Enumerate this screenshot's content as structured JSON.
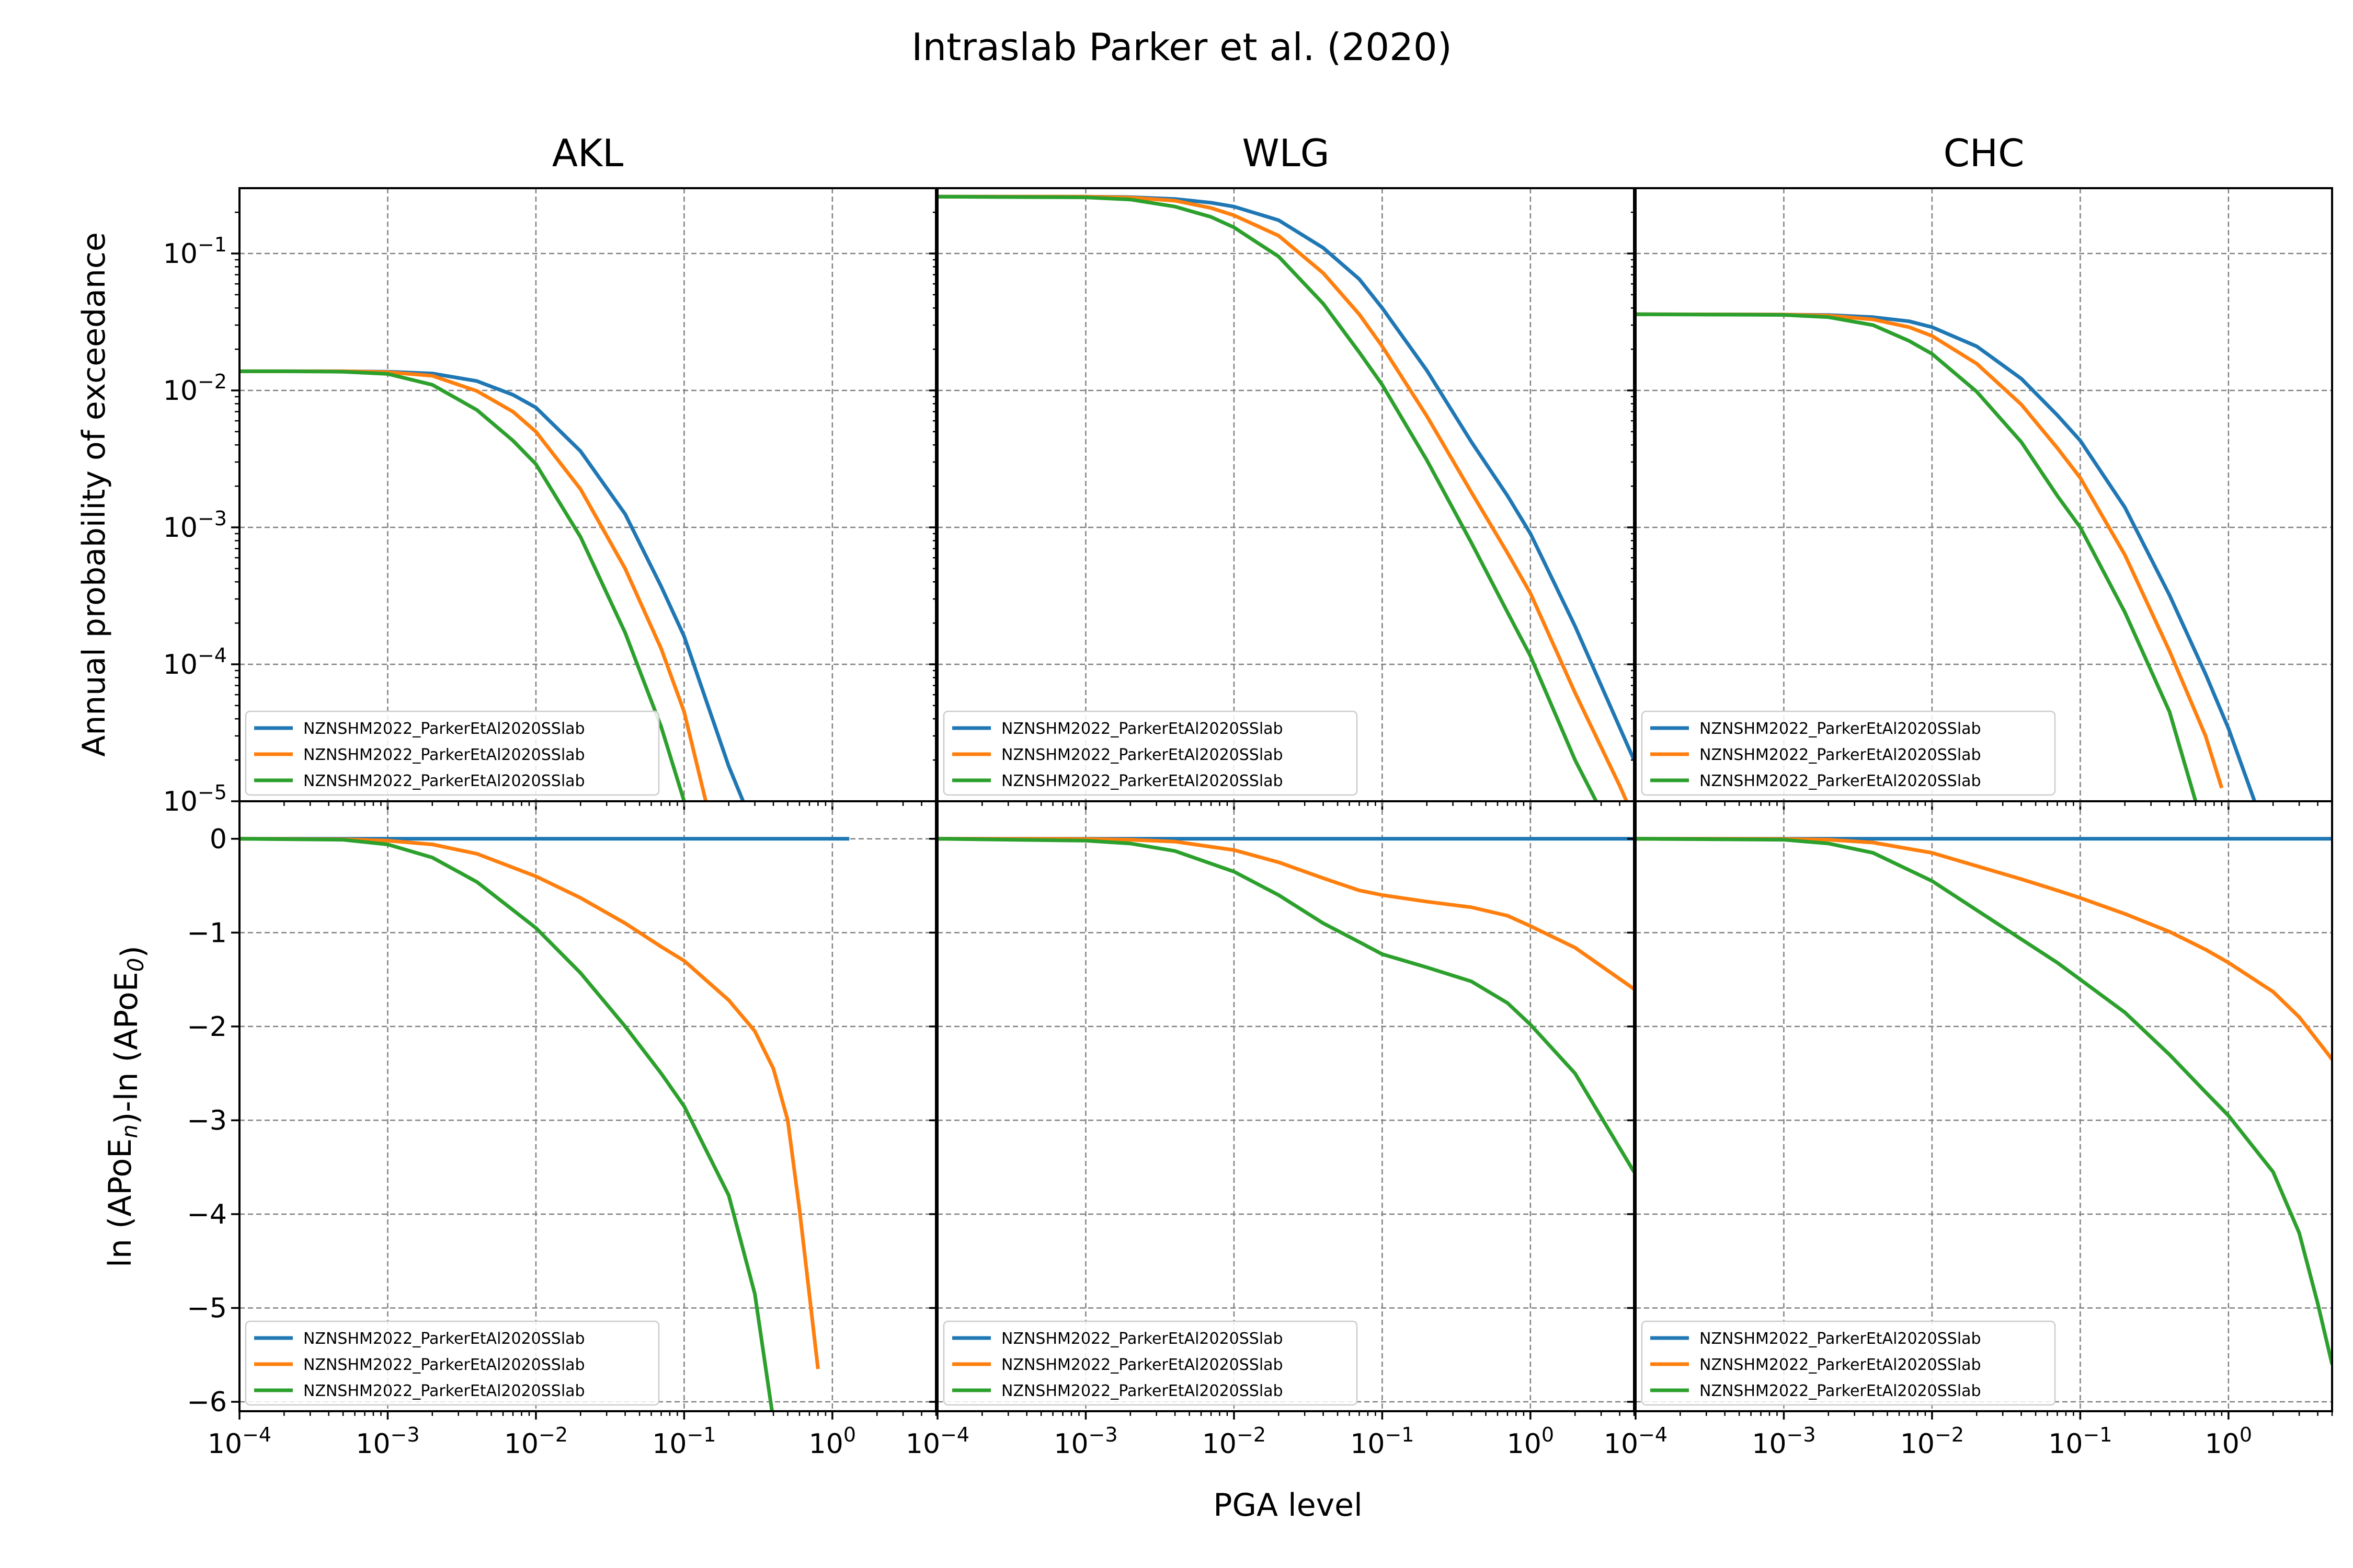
{
  "figure": {
    "title": "Intraslab Parker et al. (2020)",
    "xlabel": "PGA level",
    "ylabel_top": "Annual probability of exceedance",
    "ylabel_bottom": "ln (APoE_n)-ln (APoE_0)"
  },
  "colors": {
    "series": [
      "#1f77b4",
      "#ff7f0e",
      "#2ca02c"
    ],
    "grid": "#808080"
  },
  "chart_data": [
    {
      "type": "line",
      "panel": "top-left",
      "title": "AKL",
      "ylabel": "Annual probability of exceedance",
      "x_scale": "log",
      "y_scale": "log",
      "xlim": [
        0.0001,
        5.0
      ],
      "ylim": [
        1e-05,
        0.3
      ],
      "legend": "lower-left",
      "grid": true,
      "series": [
        {
          "name": "NZNSHM2022_ParkerEtAl2020SSlab",
          "x": [
            0.0001,
            0.0002,
            0.0005,
            0.001,
            0.002,
            0.004,
            0.007,
            0.01,
            0.02,
            0.04,
            0.07,
            0.1,
            0.2,
            0.25
          ],
          "y": [
            0.0138,
            0.0138,
            0.0138,
            0.0137,
            0.0133,
            0.0117,
            0.0093,
            0.0075,
            0.0036,
            0.00125,
            0.00037,
            0.00016,
            1.8e-05,
            1e-05
          ]
        },
        {
          "name": "NZNSHM2022_ParkerEtAl2020SSlab",
          "x": [
            0.0001,
            0.0002,
            0.0005,
            0.001,
            0.002,
            0.004,
            0.007,
            0.01,
            0.02,
            0.04,
            0.07,
            0.1,
            0.14
          ],
          "y": [
            0.0138,
            0.0138,
            0.0138,
            0.0136,
            0.0128,
            0.0099,
            0.007,
            0.005,
            0.0019,
            0.0005,
            0.00013,
            4.5e-05,
            1e-05
          ]
        },
        {
          "name": "NZNSHM2022_ParkerEtAl2020SSlab",
          "x": [
            0.0001,
            0.0002,
            0.0005,
            0.001,
            0.002,
            0.004,
            0.007,
            0.01,
            0.02,
            0.04,
            0.07,
            0.1
          ],
          "y": [
            0.0138,
            0.0138,
            0.0137,
            0.0132,
            0.011,
            0.0072,
            0.0043,
            0.0029,
            0.00085,
            0.00017,
            3.5e-05,
            1e-05
          ]
        }
      ]
    },
    {
      "type": "line",
      "panel": "top-center",
      "title": "WLG",
      "x_scale": "log",
      "y_scale": "log",
      "xlim": [
        0.0001,
        5.0
      ],
      "ylim": [
        1e-05,
        0.3
      ],
      "legend": "lower-left",
      "grid": true,
      "series": [
        {
          "name": "NZNSHM2022_ParkerEtAl2020SSlab",
          "x": [
            0.0001,
            0.001,
            0.002,
            0.004,
            0.007,
            0.01,
            0.02,
            0.04,
            0.07,
            0.1,
            0.2,
            0.4,
            0.7,
            1.0,
            2.0,
            5.0
          ],
          "y": [
            0.26,
            0.26,
            0.258,
            0.25,
            0.235,
            0.22,
            0.175,
            0.11,
            0.065,
            0.04,
            0.014,
            0.0042,
            0.0017,
            0.0009,
            0.00019,
            2e-05
          ]
        },
        {
          "name": "NZNSHM2022_ParkerEtAl2020SSlab",
          "x": [
            0.0001,
            0.001,
            0.002,
            0.004,
            0.007,
            0.01,
            0.02,
            0.04,
            0.07,
            0.1,
            0.2,
            0.4,
            0.7,
            1.0,
            2.0,
            4.0,
            5.0
          ],
          "y": [
            0.26,
            0.26,
            0.256,
            0.243,
            0.215,
            0.19,
            0.135,
            0.072,
            0.036,
            0.021,
            0.0065,
            0.0018,
            0.00065,
            0.00033,
            6.2e-05,
            1.3e-05,
            7.5e-06
          ]
        },
        {
          "name": "NZNSHM2022_ParkerEtAl2020SSlab",
          "x": [
            0.0001,
            0.001,
            0.002,
            0.004,
            0.007,
            0.01,
            0.02,
            0.04,
            0.07,
            0.1,
            0.2,
            0.4,
            0.7,
            1.0,
            2.0,
            3.0
          ],
          "y": [
            0.26,
            0.257,
            0.248,
            0.22,
            0.185,
            0.155,
            0.095,
            0.043,
            0.019,
            0.011,
            0.0031,
            0.00077,
            0.00024,
            0.000115,
            2e-05,
            8.5e-06
          ]
        }
      ]
    },
    {
      "type": "line",
      "panel": "top-right",
      "title": "CHC",
      "x_scale": "log",
      "y_scale": "log",
      "xlim": [
        0.0001,
        5.0
      ],
      "ylim": [
        1e-05,
        0.3
      ],
      "legend": "lower-left",
      "grid": true,
      "series": [
        {
          "name": "NZNSHM2022_ParkerEtAl2020SSlab",
          "x": [
            0.0001,
            0.001,
            0.002,
            0.004,
            0.007,
            0.01,
            0.02,
            0.04,
            0.07,
            0.1,
            0.2,
            0.4,
            0.7,
            1.0,
            1.5
          ],
          "y": [
            0.036,
            0.0358,
            0.0355,
            0.0343,
            0.032,
            0.029,
            0.021,
            0.0122,
            0.0066,
            0.0043,
            0.0014,
            0.00032,
            8.5e-05,
            3.4e-05,
            1e-05
          ]
        },
        {
          "name": "NZNSHM2022_ParkerEtAl2020SSlab",
          "x": [
            0.0001,
            0.001,
            0.002,
            0.004,
            0.007,
            0.01,
            0.02,
            0.04,
            0.07,
            0.1,
            0.2,
            0.4,
            0.7,
            0.9
          ],
          "y": [
            0.036,
            0.0358,
            0.0352,
            0.033,
            0.029,
            0.025,
            0.0157,
            0.0079,
            0.0038,
            0.0023,
            0.00063,
            0.000125,
            3e-05,
            1.25e-05
          ]
        },
        {
          "name": "NZNSHM2022_ParkerEtAl2020SSlab",
          "x": [
            0.0001,
            0.001,
            0.002,
            0.004,
            0.007,
            0.01,
            0.02,
            0.04,
            0.07,
            0.1,
            0.2,
            0.4,
            0.6
          ],
          "y": [
            0.036,
            0.0356,
            0.0343,
            0.03,
            0.023,
            0.0185,
            0.0098,
            0.0042,
            0.0017,
            0.001,
            0.00024,
            4.5e-05,
            1e-05
          ]
        }
      ]
    },
    {
      "type": "line",
      "panel": "bottom-left",
      "ylabel": "ln (APoE_n)-ln (APoE_0)",
      "xlabel": "",
      "x_scale": "log",
      "y_scale": "linear",
      "xlim": [
        0.0001,
        5.0
      ],
      "ylim": [
        -6.1,
        0.4
      ],
      "legend": "lower-left",
      "grid": true,
      "series": [
        {
          "name": "NZNSHM2022_ParkerEtAl2020SSlab",
          "x": [
            0.0001,
            1.3
          ],
          "y": [
            0,
            0
          ]
        },
        {
          "name": "NZNSHM2022_ParkerEtAl2020SSlab",
          "x": [
            0.0001,
            0.0005,
            0.001,
            0.002,
            0.004,
            0.01,
            0.02,
            0.04,
            0.07,
            0.1,
            0.2,
            0.3,
            0.4,
            0.5,
            0.6,
            0.8
          ],
          "y": [
            0,
            -0.005,
            -0.02,
            -0.06,
            -0.16,
            -0.4,
            -0.63,
            -0.9,
            -1.15,
            -1.3,
            -1.72,
            -2.05,
            -2.45,
            -3.0,
            -3.95,
            -5.65
          ]
        },
        {
          "name": "NZNSHM2022_ParkerEtAl2020SSlab",
          "x": [
            0.0001,
            0.0005,
            0.001,
            0.002,
            0.004,
            0.01,
            0.02,
            0.04,
            0.07,
            0.1,
            0.2,
            0.3,
            0.4
          ],
          "y": [
            0,
            -0.01,
            -0.06,
            -0.2,
            -0.46,
            -0.95,
            -1.43,
            -2.0,
            -2.5,
            -2.85,
            -3.8,
            -4.85,
            -6.2
          ]
        }
      ]
    },
    {
      "type": "line",
      "panel": "bottom-center",
      "x_scale": "log",
      "y_scale": "linear",
      "xlim": [
        0.0001,
        5.0
      ],
      "ylim": [
        -6.1,
        0.4
      ],
      "legend": "lower-left",
      "grid": true,
      "series": [
        {
          "name": "NZNSHM2022_ParkerEtAl2020SSlab",
          "x": [
            0.0001,
            5.0
          ],
          "y": [
            0,
            0
          ]
        },
        {
          "name": "NZNSHM2022_ParkerEtAl2020SSlab",
          "x": [
            0.0001,
            0.001,
            0.002,
            0.004,
            0.01,
            0.02,
            0.04,
            0.07,
            0.1,
            0.2,
            0.4,
            0.7,
            1.0,
            2.0,
            5.0
          ],
          "y": [
            0,
            -0.002,
            -0.01,
            -0.03,
            -0.12,
            -0.25,
            -0.42,
            -0.55,
            -0.6,
            -0.67,
            -0.73,
            -0.82,
            -0.93,
            -1.16,
            -1.6
          ]
        },
        {
          "name": "NZNSHM2022_ParkerEtAl2020SSlab",
          "x": [
            0.0001,
            0.001,
            0.002,
            0.004,
            0.01,
            0.02,
            0.04,
            0.07,
            0.1,
            0.2,
            0.4,
            0.7,
            1.0,
            2.0,
            5.0
          ],
          "y": [
            0,
            -0.02,
            -0.05,
            -0.13,
            -0.35,
            -0.6,
            -0.9,
            -1.1,
            -1.23,
            -1.37,
            -1.52,
            -1.75,
            -1.98,
            -2.5,
            -3.55
          ]
        }
      ]
    },
    {
      "type": "line",
      "panel": "bottom-right",
      "x_scale": "log",
      "y_scale": "linear",
      "xlim": [
        0.0001,
        5.0
      ],
      "ylim": [
        -6.1,
        0.4
      ],
      "legend": "lower-left",
      "grid": true,
      "series": [
        {
          "name": "NZNSHM2022_ParkerEtAl2020SSlab",
          "x": [
            0.0001,
            5.0
          ],
          "y": [
            0,
            0
          ]
        },
        {
          "name": "NZNSHM2022_ParkerEtAl2020SSlab",
          "x": [
            0.0001,
            0.001,
            0.002,
            0.004,
            0.01,
            0.02,
            0.04,
            0.07,
            0.1,
            0.2,
            0.4,
            0.7,
            1.0,
            2.0,
            3.0,
            5.0
          ],
          "y": [
            0,
            -0.002,
            -0.01,
            -0.04,
            -0.15,
            -0.29,
            -0.43,
            -0.55,
            -0.63,
            -0.8,
            -0.99,
            -1.18,
            -1.32,
            -1.63,
            -1.9,
            -2.35
          ]
        },
        {
          "name": "NZNSHM2022_ParkerEtAl2020SSlab",
          "x": [
            0.0001,
            0.001,
            0.002,
            0.004,
            0.01,
            0.02,
            0.04,
            0.07,
            0.1,
            0.2,
            0.4,
            0.7,
            1.0,
            2.0,
            3.0,
            4.0,
            5.0
          ],
          "y": [
            0,
            -0.01,
            -0.05,
            -0.15,
            -0.45,
            -0.76,
            -1.07,
            -1.32,
            -1.5,
            -1.85,
            -2.3,
            -2.7,
            -2.95,
            -3.55,
            -4.2,
            -4.95,
            -5.6
          ]
        }
      ]
    }
  ]
}
